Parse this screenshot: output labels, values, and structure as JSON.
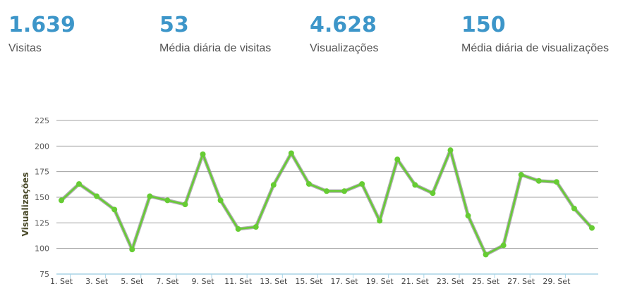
{
  "stats": [
    {
      "value": "1.639",
      "label": "Visitas"
    },
    {
      "value": "53",
      "label": "Média diária de visitas"
    },
    {
      "value": "4.628",
      "label": "Visualizações"
    },
    {
      "value": "150",
      "label": "Média diária de visualizações"
    }
  ],
  "colors": {
    "stat_number": "#3d96c9",
    "line": "#66cc33",
    "axis": "#a8d4e6",
    "grid": "#a0a0a0"
  },
  "chart_data": {
    "type": "line",
    "ylabel": "Visualizações",
    "ylim": [
      75,
      225
    ],
    "yticks": [
      75,
      100,
      125,
      150,
      175,
      200,
      225
    ],
    "xtick_labels": [
      "1. Set",
      "3. Set",
      "5. Set",
      "7. Set",
      "9. Set",
      "11. Set",
      "13. Set",
      "15. Set",
      "17. Set",
      "19. Set",
      "21. Set",
      "23. Set",
      "25. Set",
      "27. Set",
      "29. Set"
    ],
    "x": [
      1,
      2,
      3,
      4,
      5,
      6,
      7,
      8,
      9,
      10,
      11,
      12,
      13,
      14,
      15,
      16,
      17,
      18,
      19,
      20,
      21,
      22,
      23,
      24,
      25,
      26,
      27,
      28,
      29,
      30,
      31
    ],
    "series": [
      {
        "values": [
          147,
          163,
          151,
          138,
          99,
          151,
          147,
          143,
          192,
          147,
          119,
          121,
          162,
          193,
          163,
          156,
          156,
          163,
          127,
          187,
          162,
          154,
          196,
          132,
          94,
          103,
          172,
          166,
          165,
          139,
          120
        ]
      }
    ],
    "grid": true,
    "legend": "none"
  }
}
